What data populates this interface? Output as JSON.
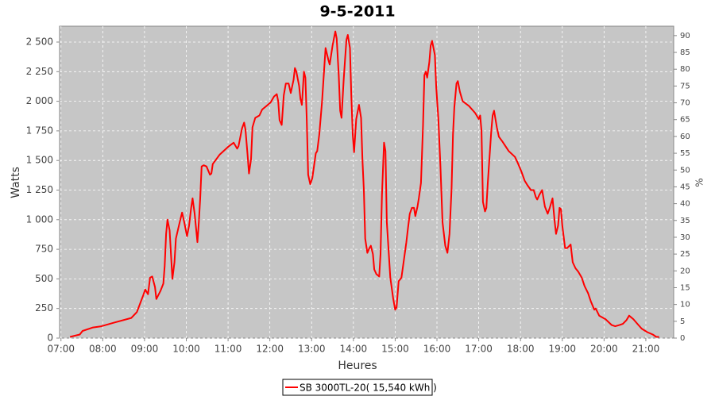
{
  "chart_data": {
    "type": "line",
    "title": "9-5-2011",
    "xlabel": "Heures",
    "ylabel": "Watts",
    "y2label": "%",
    "x": [
      "07:13",
      "07:27",
      "07:31",
      "07:46",
      "07:58",
      "08:16",
      "08:41",
      "08:49",
      "08:58",
      "09:01",
      "09:05",
      "09:08",
      "09:11",
      "09:15",
      "09:17",
      "09:23",
      "09:27",
      "09:29",
      "09:31",
      "09:33",
      "09:36",
      "09:38",
      "09:40",
      "09:43",
      "09:45",
      "09:51",
      "09:54",
      "09:57",
      "10:01",
      "10:04",
      "10:07",
      "10:09",
      "10:12",
      "10:16",
      "10:18",
      "10:20",
      "10:22",
      "10:25",
      "10:29",
      "10:34",
      "10:36",
      "10:38",
      "10:48",
      "11:01",
      "11:08",
      "11:13",
      "11:15",
      "11:20",
      "11:23",
      "11:25",
      "11:28",
      "11:30",
      "11:33",
      "11:35",
      "11:39",
      "11:45",
      "11:49",
      "11:55",
      "12:01",
      "12:06",
      "12:10",
      "12:12",
      "12:14",
      "12:17",
      "12:20",
      "12:23",
      "12:27",
      "12:30",
      "12:34",
      "12:36",
      "12:38",
      "12:42",
      "12:44",
      "12:46",
      "12:49",
      "12:51",
      "12:53",
      "12:55",
      "12:58",
      "13:01",
      "13:06",
      "13:08",
      "13:11",
      "13:15",
      "13:20",
      "13:24",
      "13:26",
      "13:30",
      "13:32",
      "13:34",
      "13:36",
      "13:39",
      "13:41",
      "13:43",
      "13:46",
      "13:48",
      "13:50",
      "13:52",
      "13:55",
      "13:57",
      "13:59",
      "14:01",
      "14:04",
      "14:08",
      "14:11",
      "14:13",
      "14:15",
      "14:17",
      "14:20",
      "14:23",
      "14:25",
      "14:28",
      "14:30",
      "14:33",
      "14:37",
      "14:39",
      "14:41",
      "14:44",
      "14:46",
      "14:48",
      "14:53",
      "14:57",
      "15:00",
      "15:02",
      "15:05",
      "15:09",
      "15:12",
      "15:16",
      "15:18",
      "15:21",
      "15:24",
      "15:27",
      "15:29",
      "15:32",
      "15:34",
      "15:37",
      "15:40",
      "15:42",
      "15:44",
      "15:46",
      "15:49",
      "15:51",
      "15:53",
      "15:57",
      "15:59",
      "16:02",
      "16:05",
      "16:08",
      "16:12",
      "16:15",
      "16:18",
      "16:21",
      "16:23",
      "16:25",
      "16:28",
      "16:30",
      "16:33",
      "16:37",
      "16:46",
      "16:55",
      "17:00",
      "17:02",
      "17:04",
      "17:06",
      "17:09",
      "17:11",
      "17:13",
      "17:18",
      "17:20",
      "17:22",
      "17:26",
      "17:29",
      "17:34",
      "17:43",
      "17:52",
      "17:56",
      "18:01",
      "18:06",
      "18:10",
      "18:15",
      "18:19",
      "18:22",
      "18:24",
      "18:27",
      "18:31",
      "18:35",
      "18:39",
      "18:42",
      "18:46",
      "18:49",
      "18:51",
      "18:54",
      "18:56",
      "18:58",
      "19:00",
      "19:04",
      "19:07",
      "19:12",
      "19:15",
      "19:19",
      "19:23",
      "19:28",
      "19:32",
      "19:37",
      "19:41",
      "19:46",
      "19:48",
      "19:53",
      "20:02",
      "20:11",
      "20:16",
      "20:22",
      "20:27",
      "20:32",
      "20:36",
      "20:42",
      "20:48",
      "20:54",
      "21:02",
      "21:10",
      "21:15",
      "21:19"
    ],
    "series": [
      {
        "name": "SB 3000TL-20( 15,540 kWh  )",
        "color": "#ff0000",
        "values": [
          10,
          30,
          60,
          90,
          100,
          130,
          170,
          220,
          360,
          410,
          370,
          510,
          520,
          430,
          330,
          400,
          460,
          610,
          880,
          1000,
          910,
          710,
          500,
          640,
          840,
          990,
          1060,
          980,
          860,
          950,
          1100,
          1180,
          1050,
          810,
          980,
          1180,
          1450,
          1460,
          1450,
          1380,
          1390,
          1470,
          1550,
          1620,
          1650,
          1600,
          1620,
          1770,
          1820,
          1760,
          1550,
          1390,
          1510,
          1780,
          1860,
          1880,
          1930,
          1960,
          1990,
          2040,
          2060,
          2000,
          1840,
          1800,
          2050,
          2150,
          2150,
          2070,
          2180,
          2280,
          2250,
          2130,
          2020,
          1970,
          2250,
          2200,
          1850,
          1380,
          1300,
          1350,
          1560,
          1580,
          1720,
          2000,
          2450,
          2350,
          2310,
          2470,
          2530,
          2590,
          2530,
          2220,
          1920,
          1860,
          2180,
          2350,
          2520,
          2560,
          2450,
          2050,
          1720,
          1570,
          1850,
          1970,
          1860,
          1510,
          1250,
          840,
          720,
          760,
          780,
          710,
          580,
          540,
          520,
          710,
          1210,
          1650,
          1580,
          980,
          510,
          340,
          240,
          260,
          480,
          510,
          640,
          810,
          910,
          1050,
          1100,
          1100,
          1030,
          1110,
          1180,
          1310,
          1800,
          2220,
          2250,
          2200,
          2330,
          2470,
          2510,
          2390,
          2120,
          1850,
          1450,
          980,
          780,
          720,
          880,
          1260,
          1720,
          1950,
          2150,
          2170,
          2080,
          2000,
          1960,
          1900,
          1850,
          1880,
          1750,
          1150,
          1070,
          1100,
          1310,
          1750,
          1880,
          1920,
          1780,
          1700,
          1660,
          1580,
          1530,
          1480,
          1410,
          1330,
          1290,
          1250,
          1250,
          1190,
          1170,
          1210,
          1250,
          1110,
          1050,
          1100,
          1180,
          990,
          880,
          950,
          1100,
          1090,
          950,
          760,
          760,
          790,
          640,
          590,
          560,
          510,
          440,
          380,
          310,
          240,
          250,
          190,
          160,
          110,
          100,
          110,
          120,
          150,
          190,
          160,
          120,
          80,
          50,
          30,
          10,
          10
        ]
      }
    ],
    "xlim": [
      "06:58",
      "21:40"
    ],
    "xticks": [
      "07:00",
      "08:00",
      "09:00",
      "10:00",
      "11:00",
      "12:00",
      "13:00",
      "14:00",
      "15:00",
      "16:00",
      "17:00",
      "18:00",
      "19:00",
      "20:00",
      "21:00"
    ],
    "ylim": [
      0,
      2634
    ],
    "yticks": [
      0,
      250,
      500,
      750,
      {
        "value": 1000,
        "label": "1 000"
      },
      {
        "value": 1250,
        "label": "1 250"
      },
      {
        "value": 1500,
        "label": "1 500"
      },
      {
        "value": 1750,
        "label": "1 750"
      },
      {
        "value": 2000,
        "label": "2 000"
      },
      {
        "value": 2250,
        "label": "2 250"
      },
      {
        "value": 2500,
        "label": "2 500"
      }
    ],
    "y2lim": [
      0,
      92.8
    ],
    "y2ticks": [
      0,
      5,
      10,
      15,
      20,
      25,
      30,
      35,
      40,
      45,
      50,
      55,
      60,
      65,
      70,
      75,
      80,
      85,
      90
    ],
    "grid": true,
    "legend": "bottom"
  }
}
